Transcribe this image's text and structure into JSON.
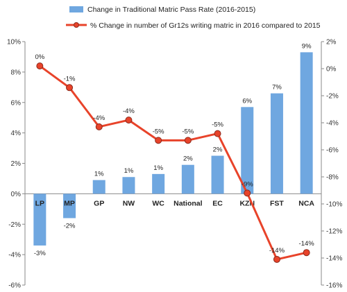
{
  "chart_data": {
    "type": "bar",
    "categories": [
      "LP",
      "MP",
      "GP",
      "NW",
      "WC",
      "National",
      "EC",
      "KZN",
      "FST",
      "NCA"
    ],
    "series": [
      {
        "name": "Change in Traditional Matric Pass Rate (2016-2015)",
        "type": "bar",
        "axis": "left",
        "color": "#6fa7e0",
        "values": [
          -3.4,
          -1.6,
          0.9,
          1.1,
          1.3,
          1.9,
          2.5,
          5.7,
          6.6,
          9.3
        ],
        "labels": [
          "-3%",
          "-2%",
          "1%",
          "1%",
          "1%",
          "2%",
          "2%",
          "6%",
          "7%",
          "9%"
        ]
      },
      {
        "name": "% Change in number of Gr12s writing matric in 2016 compared to 2015",
        "type": "line",
        "axis": "right",
        "color": "#e8432a",
        "values": [
          0.2,
          -1.4,
          -4.3,
          -3.8,
          -5.3,
          -5.3,
          -4.8,
          -9.2,
          -14.1,
          -13.6
        ],
        "labels": [
          "0%",
          "-1%",
          "-4%",
          "-4%",
          "-5%",
          "-5%",
          "-5%",
          "-9%",
          "-14%",
          "-14%"
        ]
      }
    ],
    "y_left": {
      "ylim": [
        -6,
        10
      ],
      "ticks": [
        10,
        8,
        6,
        4,
        2,
        0,
        -2,
        -4,
        -6
      ],
      "tick_labels": [
        "10%",
        "8%",
        "6%",
        "4%",
        "2%",
        "0%",
        "-2%",
        "-4%",
        "-6%"
      ]
    },
    "y_right": {
      "ylim": [
        -16,
        2
      ],
      "ticks": [
        2,
        0,
        -2,
        -4,
        -6,
        -8,
        -10,
        -12,
        -14,
        -16
      ],
      "tick_labels": [
        "2%",
        "0%",
        "-2%",
        "-4%",
        "-6%",
        "-8%",
        "-10%",
        "-12%",
        "-14%",
        "-16%"
      ]
    },
    "legend_position": "top",
    "grid": false
  }
}
